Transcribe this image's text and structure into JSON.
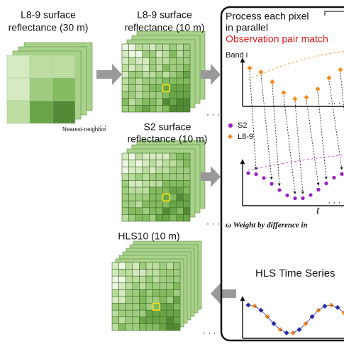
{
  "nodes": [
    {
      "label_lines": [
        "L8-9 surface",
        "reflectance (30 m)"
      ]
    },
    {
      "label_lines": [
        "L8-9 surface",
        "reflectance (10 m)"
      ]
    },
    {
      "label_lines": [
        "S2 surface",
        "reflectance (10 m)"
      ]
    },
    {
      "label_lines": [
        "HLS10 (10 m)"
      ]
    }
  ],
  "resampling_note": "Nearest-neighbor",
  "panel": {
    "title_lines": [
      "Process each pixel",
      "in parallel"
    ],
    "subtitle": "Observation pair match",
    "y_axis_label": "Band i",
    "legend": [
      "S2",
      "L8-9"
    ],
    "x_axis_label": "t",
    "weight_caption": "ω Weight by difference in",
    "output_title": "HLS Time Series"
  }
}
